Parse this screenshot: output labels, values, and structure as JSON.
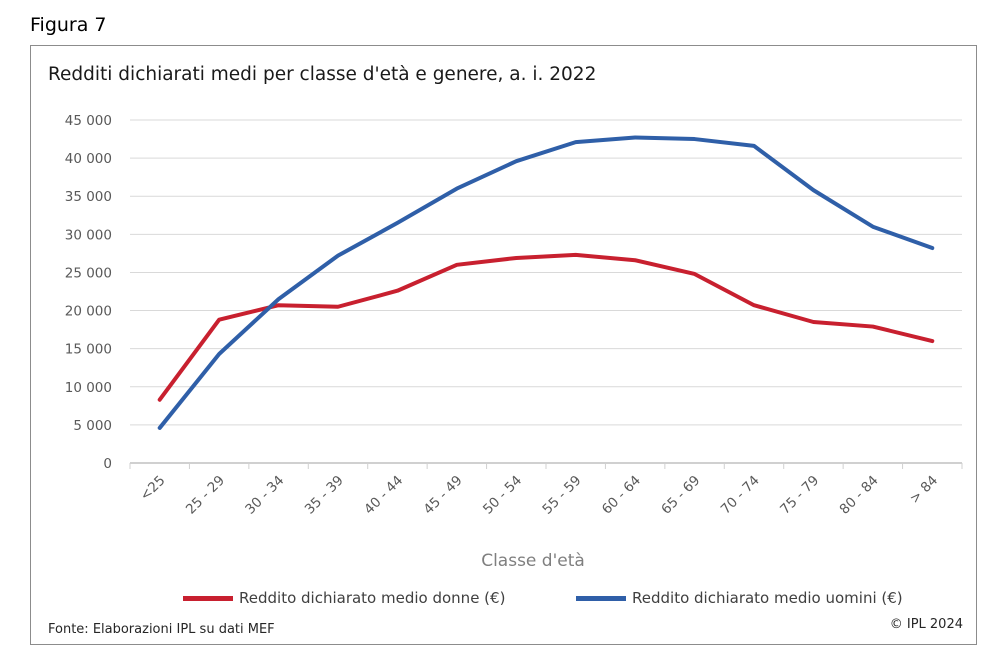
{
  "figure_label": "Figura 7",
  "footer": {
    "source": "Fonte: Elaborazioni IPL su dati MEF",
    "copyright": "© IPL 2024"
  },
  "chart_data": {
    "type": "line",
    "title": "Redditi dichiarati medi per classe d'età e genere, a. i. 2022",
    "xlabel": "Classe d'età",
    "ylabel": "",
    "ylim": [
      0,
      45000
    ],
    "yticks": [
      0,
      5000,
      10000,
      15000,
      20000,
      25000,
      30000,
      35000,
      40000,
      45000
    ],
    "ytick_labels": [
      "0",
      "5 000",
      "10 000",
      "15 000",
      "20 000",
      "25 000",
      "30 000",
      "35 000",
      "40 000",
      "45 000"
    ],
    "grid": true,
    "legend_position": "bottom",
    "categories": [
      "<25",
      "25 - 29",
      "30 - 34",
      "35 - 39",
      "40 - 44",
      "45 - 49",
      "50 - 54",
      "55 - 59",
      "60 - 64",
      "65 - 69",
      "70 - 74",
      "75 - 79",
      "80 - 84",
      "> 84"
    ],
    "series": [
      {
        "name": "Reddito dichiarato medio donne (€)",
        "color": "#c8202f",
        "values": [
          8300,
          18800,
          20700,
          20500,
          22600,
          26000,
          26900,
          27300,
          26600,
          24800,
          20700,
          18500,
          17900,
          16000
        ]
      },
      {
        "name": "Reddito dichiarato medio uomini (€)",
        "color": "#2f5fa8",
        "values": [
          4600,
          14300,
          21500,
          27200,
          31500,
          36000,
          39600,
          42100,
          42700,
          42500,
          41600,
          35800,
          31000,
          28200
        ]
      }
    ]
  }
}
